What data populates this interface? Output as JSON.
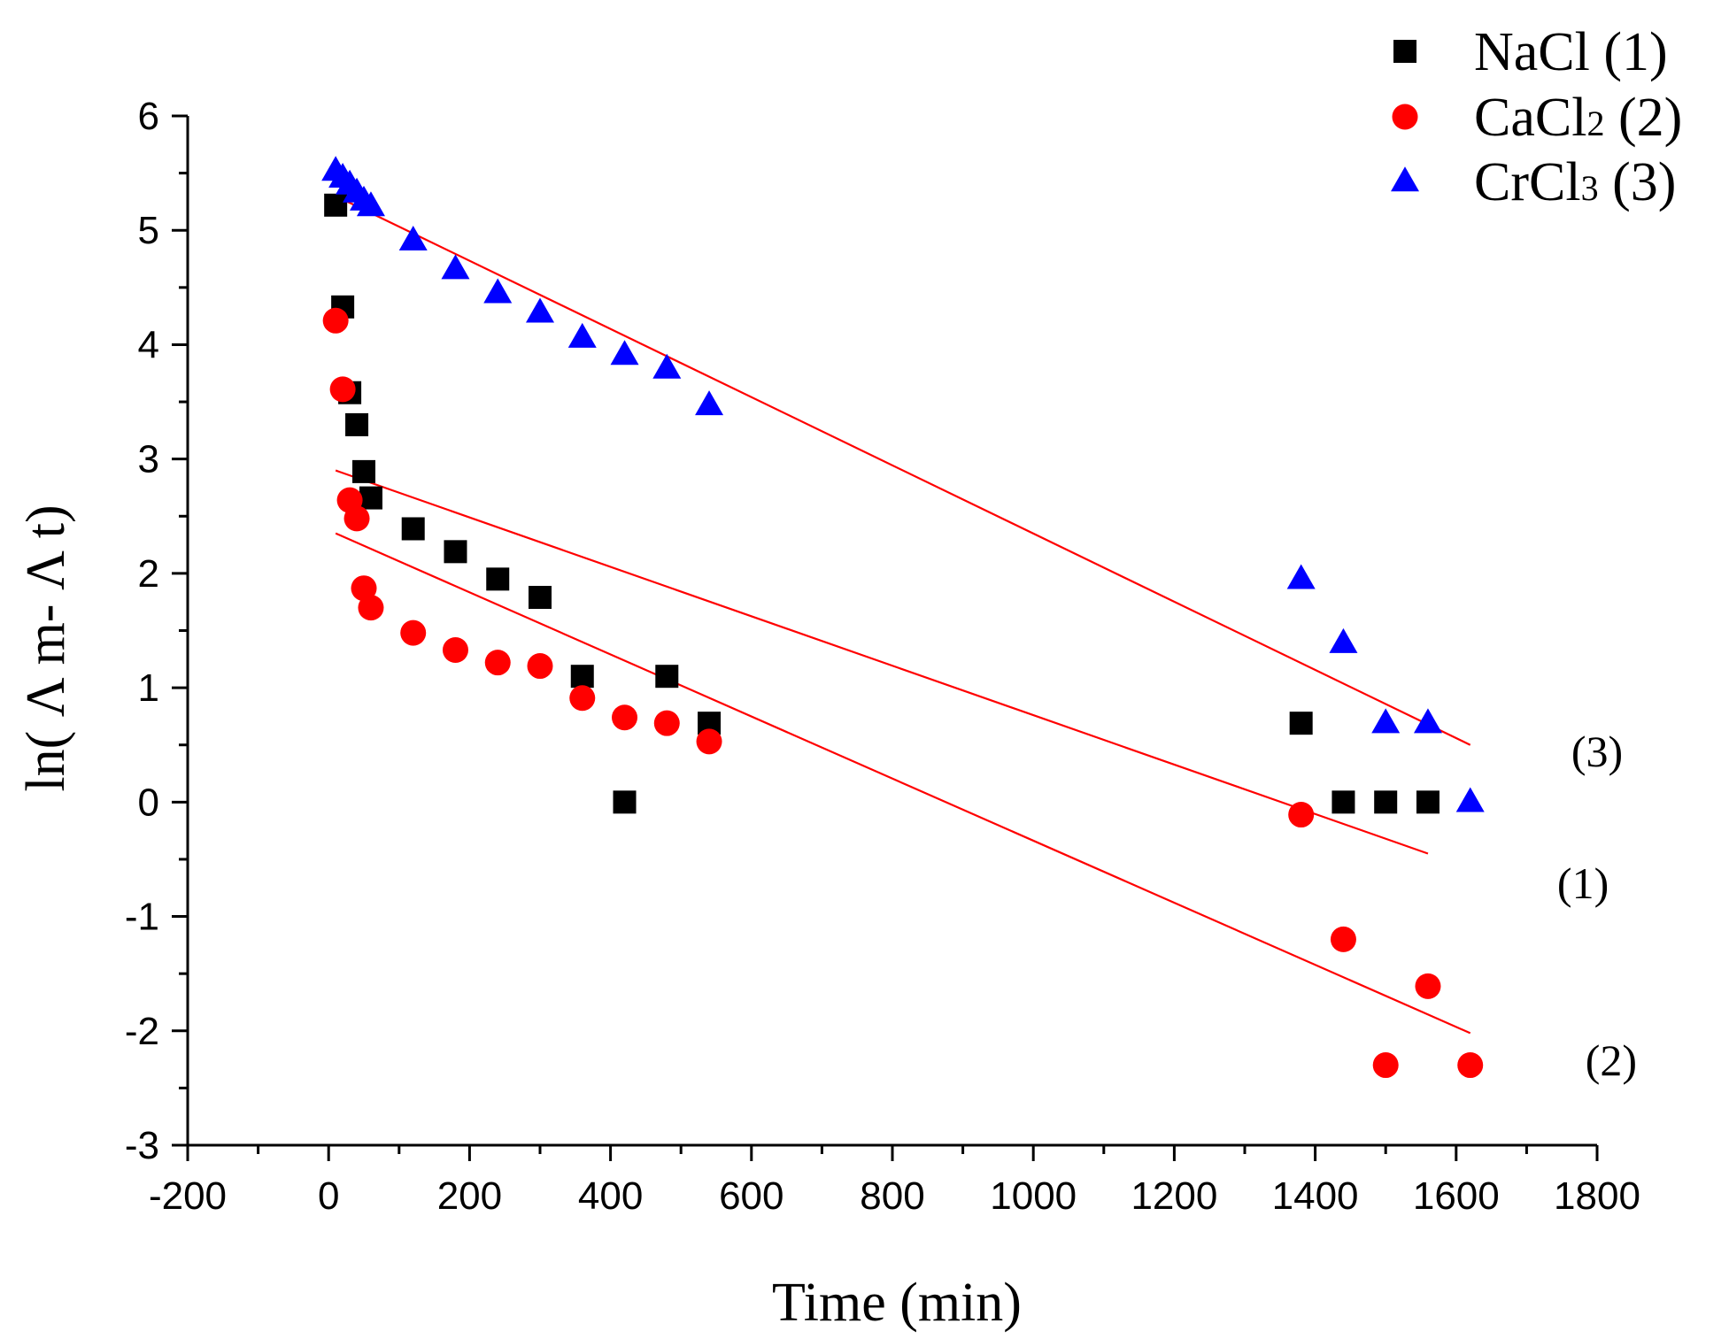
{
  "chart_data": {
    "type": "scatter",
    "title": "",
    "xlabel": "Time (min)",
    "ylabel": "ln( Λ m- Λ t)",
    "xlim": [
      -200,
      1800
    ],
    "ylim": [
      -3,
      6
    ],
    "x_ticks": [
      -200,
      0,
      200,
      400,
      600,
      800,
      1000,
      1200,
      1400,
      1600,
      1800
    ],
    "y_ticks": [
      -3,
      -2,
      -1,
      0,
      1,
      2,
      3,
      4,
      5,
      6
    ],
    "grid": false,
    "legend_position": "top-right",
    "series": [
      {
        "name": "NaCl",
        "legend_label": "NaCl (1)",
        "marker": "square",
        "color": "#000000",
        "points": [
          [
            10,
            5.22
          ],
          [
            20,
            4.33
          ],
          [
            30,
            3.58
          ],
          [
            40,
            3.3
          ],
          [
            50,
            2.89
          ],
          [
            60,
            2.66
          ],
          [
            120,
            2.39
          ],
          [
            180,
            2.19
          ],
          [
            240,
            1.95
          ],
          [
            300,
            1.79
          ],
          [
            360,
            1.1
          ],
          [
            420,
            0.0
          ],
          [
            480,
            1.1
          ],
          [
            540,
            0.69
          ],
          [
            1380,
            0.69
          ],
          [
            1440,
            0.0
          ],
          [
            1500,
            0.0
          ],
          [
            1560,
            0.0
          ]
        ],
        "fit": {
          "color": "#ff0000",
          "x": [
            10,
            1560
          ],
          "y": [
            2.9,
            -0.45
          ]
        }
      },
      {
        "name": "CaCl",
        "name_sub": "2",
        "legend_label": "CaCl2 (2)",
        "marker": "circle",
        "color": "#ff0000",
        "points": [
          [
            10,
            4.21
          ],
          [
            20,
            3.61
          ],
          [
            30,
            2.64
          ],
          [
            40,
            2.48
          ],
          [
            50,
            1.87
          ],
          [
            60,
            1.7
          ],
          [
            120,
            1.48
          ],
          [
            180,
            1.33
          ],
          [
            240,
            1.22
          ],
          [
            300,
            1.19
          ],
          [
            360,
            0.91
          ],
          [
            420,
            0.74
          ],
          [
            480,
            0.69
          ],
          [
            540,
            0.53
          ],
          [
            1380,
            -0.11
          ],
          [
            1440,
            -1.2
          ],
          [
            1500,
            -2.3
          ],
          [
            1560,
            -1.61
          ],
          [
            1620,
            -2.3
          ]
        ],
        "fit": {
          "color": "#ff0000",
          "x": [
            10,
            1620
          ],
          "y": [
            2.35,
            -2.02
          ]
        }
      },
      {
        "name": "CrCl",
        "name_sub": "3",
        "legend_label": "CrCl3 (3)",
        "marker": "triangle",
        "color": "#0000ff",
        "points": [
          [
            10,
            5.52
          ],
          [
            20,
            5.46
          ],
          [
            30,
            5.4
          ],
          [
            40,
            5.33
          ],
          [
            50,
            5.26
          ],
          [
            60,
            5.21
          ],
          [
            120,
            4.91
          ],
          [
            180,
            4.66
          ],
          [
            240,
            4.45
          ],
          [
            300,
            4.28
          ],
          [
            360,
            4.06
          ],
          [
            420,
            3.91
          ],
          [
            480,
            3.79
          ],
          [
            540,
            3.47
          ],
          [
            1380,
            1.95
          ],
          [
            1440,
            1.39
          ],
          [
            1500,
            0.69
          ],
          [
            1560,
            0.69
          ],
          [
            1620,
            0.0
          ]
        ],
        "fit": {
          "color": "#ff0000",
          "x": [
            10,
            1620
          ],
          "y": [
            5.3,
            0.5
          ]
        }
      }
    ],
    "annotations": [
      {
        "text": "(3)",
        "x": 1800,
        "y": 0.45
      },
      {
        "text": "(1)",
        "x": 1780,
        "y": -0.7
      },
      {
        "text": "(2)",
        "x": 1820,
        "y": -2.25
      }
    ]
  }
}
